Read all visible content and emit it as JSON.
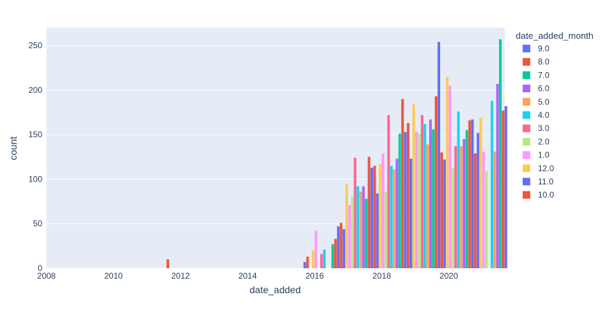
{
  "chart_data": {
    "type": "bar",
    "title": "",
    "xlabel": "date_added",
    "ylabel": "count",
    "x_ticks": [
      "2008",
      "2010",
      "2012",
      "2014",
      "2016",
      "2018",
      "2020"
    ],
    "y_ticks": [
      "0",
      "50",
      "100",
      "150",
      "200",
      "250"
    ],
    "xlim": [
      "2008-01",
      "2021-09"
    ],
    "ylim": [
      0,
      270
    ],
    "grid": true,
    "legend_placement": "right",
    "legend_title": "date_added_month",
    "series": [
      {
        "name": "9.0",
        "color": "#636efa",
        "points": [
          [
            "2019-09",
            254
          ],
          [
            "2020-09",
            167
          ],
          [
            "2021-09",
            182
          ],
          [
            "2018-09",
            153
          ],
          [
            "2017-09",
            113
          ],
          [
            "2016-09",
            47
          ],
          [
            "2015-09",
            7
          ]
        ]
      },
      {
        "name": "8.0",
        "color": "#ef553b",
        "points": [
          [
            "2019-08",
            193
          ],
          [
            "2018-08",
            190
          ],
          [
            "2020-08",
            166
          ],
          [
            "2021-08",
            177
          ],
          [
            "2017-08",
            125
          ],
          [
            "2016-08",
            33
          ],
          [
            "2011-08",
            10
          ]
        ]
      },
      {
        "name": "7.0",
        "color": "#00cc96",
        "points": [
          [
            "2021-07",
            257
          ],
          [
            "2018-07",
            151
          ],
          [
            "2020-07",
            155
          ],
          [
            "2019-07",
            156
          ],
          [
            "2017-07",
            78
          ],
          [
            "2016-07",
            27
          ]
        ]
      },
      {
        "name": "6.0",
        "color": "#ab63fa",
        "points": [
          [
            "2021-06",
            207
          ],
          [
            "2019-06",
            167
          ],
          [
            "2020-06",
            145
          ],
          [
            "2018-06",
            123
          ],
          [
            "2017-06",
            92
          ]
        ]
      },
      {
        "name": "5.0",
        "color": "#ffa15a",
        "points": [
          [
            "2019-05",
            139
          ],
          [
            "2020-05",
            137
          ],
          [
            "2021-05",
            131
          ],
          [
            "2018-05",
            111
          ],
          [
            "2017-05",
            86
          ]
        ]
      },
      {
        "name": "4.0",
        "color": "#19d3f3",
        "points": [
          [
            "2020-04",
            176
          ],
          [
            "2021-04",
            188
          ],
          [
            "2019-04",
            162
          ],
          [
            "2018-04",
            115
          ],
          [
            "2017-04",
            92
          ],
          [
            "2016-04",
            21
          ]
        ]
      },
      {
        "name": "3.0",
        "color": "#ff6692",
        "points": [
          [
            "2018-03",
            172
          ],
          [
            "2019-03",
            172
          ],
          [
            "2020-03",
            137
          ],
          [
            "2017-03",
            124
          ],
          [
            "2016-03",
            16
          ]
        ]
      },
      {
        "name": "2.0",
        "color": "#b6e880",
        "points": [
          [
            "2019-02",
            151
          ],
          [
            "2020-02",
            113
          ],
          [
            "2021-02",
            109
          ],
          [
            "2018-02",
            86
          ],
          [
            "2017-02",
            80
          ]
        ]
      },
      {
        "name": "1.0",
        "color": "#ff97ff",
        "points": [
          [
            "2019-01",
            153
          ],
          [
            "2020-01",
            205
          ],
          [
            "2021-01",
            131
          ],
          [
            "2018-01",
            129
          ],
          [
            "2017-01",
            71
          ],
          [
            "2016-01",
            42
          ]
        ]
      },
      {
        "name": "12.0",
        "color": "#fecb52",
        "points": [
          [
            "2019-12",
            215
          ],
          [
            "2020-12",
            169
          ],
          [
            "2018-12",
            184
          ],
          [
            "2017-12",
            117
          ],
          [
            "2016-12",
            95
          ],
          [
            "2015-12",
            20
          ]
        ]
      },
      {
        "name": "11.0",
        "color": "#636efa",
        "points": [
          [
            "2019-11",
            122
          ],
          [
            "2020-11",
            152
          ],
          [
            "2018-11",
            123
          ],
          [
            "2017-11",
            84
          ],
          [
            "2016-11",
            44
          ]
        ]
      },
      {
        "name": "10.0",
        "color": "#ef553b",
        "points": [
          [
            "2019-10",
            130
          ],
          [
            "2020-10",
            129
          ],
          [
            "2018-10",
            163
          ],
          [
            "2017-10",
            115
          ],
          [
            "2016-10",
            51
          ],
          [
            "2015-10",
            13
          ]
        ]
      }
    ]
  }
}
